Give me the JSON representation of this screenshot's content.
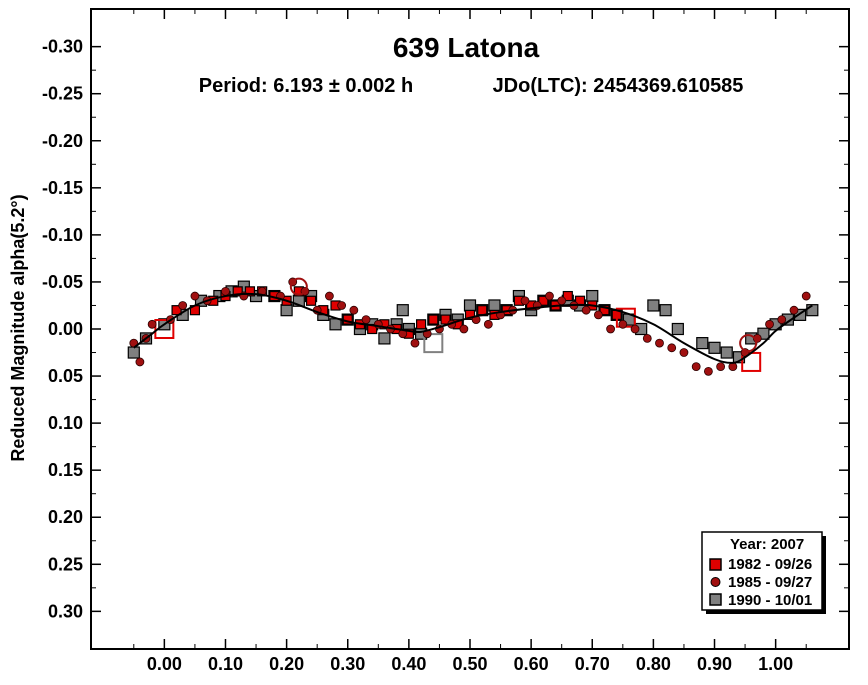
{
  "chart_data": {
    "type": "scatter",
    "title": "639 Latona",
    "subtitle_period": "Period: 6.193 ± 0.002 h",
    "subtitle_epoch": "JDo(LTC): 2454369.610585",
    "ylabel": "Reduced Magnitude alpha(5.2°)",
    "xlabel": "",
    "xlim": [
      -0.12,
      1.12
    ],
    "ylim": [
      0.34,
      -0.34
    ],
    "y_inverted": true,
    "grid": false,
    "legend_position": "bottom-right",
    "legend_title": "Year: 2007",
    "x_ticks": [
      {
        "value": 0.0,
        "label": "0.00"
      },
      {
        "value": 0.1,
        "label": "0.10"
      },
      {
        "value": 0.2,
        "label": "0.20"
      },
      {
        "value": 0.3,
        "label": "0.30"
      },
      {
        "value": 0.4,
        "label": "0.40"
      },
      {
        "value": 0.5,
        "label": "0.50"
      },
      {
        "value": 0.6,
        "label": "0.60"
      },
      {
        "value": 0.7,
        "label": "0.70"
      },
      {
        "value": 0.8,
        "label": "0.80"
      },
      {
        "value": 0.9,
        "label": "0.90"
      },
      {
        "value": 1.0,
        "label": "1.00"
      }
    ],
    "y_ticks": [
      {
        "value": -0.3,
        "label": "-0.30"
      },
      {
        "value": -0.25,
        "label": "-0.25"
      },
      {
        "value": -0.2,
        "label": "-0.20"
      },
      {
        "value": -0.15,
        "label": "-0.15"
      },
      {
        "value": -0.1,
        "label": "-0.10"
      },
      {
        "value": -0.05,
        "label": "-0.05"
      },
      {
        "value": 0.0,
        "label": "0.00"
      },
      {
        "value": 0.05,
        "label": "0.05"
      },
      {
        "value": 0.1,
        "label": "0.10"
      },
      {
        "value": 0.15,
        "label": "0.15"
      },
      {
        "value": 0.2,
        "label": "0.20"
      },
      {
        "value": 0.25,
        "label": "0.25"
      },
      {
        "value": 0.3,
        "label": "0.30"
      }
    ],
    "series": [
      {
        "name": "1982 - 09/26",
        "marker": "square",
        "color": "#e00000",
        "points": [
          [
            0.02,
            -0.02
          ],
          [
            0.05,
            -0.02
          ],
          [
            0.08,
            -0.03
          ],
          [
            0.1,
            -0.035
          ],
          [
            0.12,
            -0.04
          ],
          [
            0.14,
            -0.04
          ],
          [
            0.16,
            -0.04
          ],
          [
            0.18,
            -0.035
          ],
          [
            0.2,
            -0.03
          ],
          [
            0.22,
            -0.04
          ],
          [
            0.24,
            -0.03
          ],
          [
            0.26,
            -0.02
          ],
          [
            0.28,
            -0.025
          ],
          [
            0.3,
            -0.01
          ],
          [
            0.32,
            -0.005
          ],
          [
            0.34,
            0.0
          ],
          [
            0.36,
            -0.005
          ],
          [
            0.38,
            0.0
          ],
          [
            0.4,
            0.005
          ],
          [
            0.42,
            -0.005
          ],
          [
            0.44,
            -0.01
          ],
          [
            0.46,
            -0.01
          ],
          [
            0.48,
            -0.005
          ],
          [
            0.5,
            -0.015
          ],
          [
            0.52,
            -0.02
          ],
          [
            0.54,
            -0.015
          ],
          [
            0.56,
            -0.02
          ],
          [
            0.58,
            -0.03
          ],
          [
            0.6,
            -0.025
          ],
          [
            0.62,
            -0.03
          ],
          [
            0.64,
            -0.025
          ],
          [
            0.66,
            -0.035
          ],
          [
            0.68,
            -0.03
          ],
          [
            0.7,
            -0.025
          ],
          [
            0.72,
            -0.02
          ],
          [
            0.74,
            -0.015
          ]
        ],
        "open_points": [
          [
            0.0,
            0.0
          ],
          [
            0.755,
            -0.012
          ],
          [
            0.96,
            0.035
          ]
        ]
      },
      {
        "name": "1985 - 09/27",
        "marker": "circle",
        "color": "#a01010",
        "points": [
          [
            -0.05,
            0.015
          ],
          [
            -0.04,
            0.035
          ],
          [
            -0.03,
            0.01
          ],
          [
            -0.02,
            -0.005
          ],
          [
            0.01,
            -0.01
          ],
          [
            0.03,
            -0.025
          ],
          [
            0.05,
            -0.035
          ],
          [
            0.07,
            -0.03
          ],
          [
            0.1,
            -0.04
          ],
          [
            0.13,
            -0.035
          ],
          [
            0.16,
            -0.04
          ],
          [
            0.19,
            -0.035
          ],
          [
            0.21,
            -0.05
          ],
          [
            0.23,
            -0.04
          ],
          [
            0.25,
            -0.02
          ],
          [
            0.27,
            -0.035
          ],
          [
            0.29,
            -0.025
          ],
          [
            0.31,
            -0.02
          ],
          [
            0.33,
            -0.01
          ],
          [
            0.35,
            -0.005
          ],
          [
            0.37,
            0.0
          ],
          [
            0.39,
            0.005
          ],
          [
            0.41,
            0.015
          ],
          [
            0.43,
            0.005
          ],
          [
            0.45,
            0.0
          ],
          [
            0.47,
            -0.005
          ],
          [
            0.49,
            0.0
          ],
          [
            0.51,
            -0.01
          ],
          [
            0.53,
            -0.005
          ],
          [
            0.55,
            -0.015
          ],
          [
            0.57,
            -0.02
          ],
          [
            0.59,
            -0.03
          ],
          [
            0.61,
            -0.025
          ],
          [
            0.63,
            -0.035
          ],
          [
            0.65,
            -0.03
          ],
          [
            0.67,
            -0.025
          ],
          [
            0.69,
            -0.02
          ],
          [
            0.71,
            -0.015
          ],
          [
            0.73,
            0.0
          ],
          [
            0.75,
            -0.005
          ],
          [
            0.77,
            0.0
          ],
          [
            0.79,
            0.01
          ],
          [
            0.81,
            0.015
          ],
          [
            0.83,
            0.02
          ],
          [
            0.85,
            0.025
          ],
          [
            0.87,
            0.04
          ],
          [
            0.89,
            0.045
          ],
          [
            0.91,
            0.04
          ],
          [
            0.93,
            0.04
          ],
          [
            0.95,
            0.025
          ],
          [
            0.97,
            0.01
          ],
          [
            0.99,
            -0.005
          ],
          [
            1.01,
            -0.01
          ],
          [
            1.03,
            -0.02
          ],
          [
            1.05,
            -0.035
          ]
        ],
        "open_points": [
          [
            0.22,
            -0.045
          ],
          [
            0.955,
            0.015
          ]
        ]
      },
      {
        "name": "1990 - 10/01",
        "marker": "square",
        "color": "#808080",
        "points": [
          [
            -0.05,
            0.025
          ],
          [
            -0.03,
            0.01
          ],
          [
            0.0,
            -0.005
          ],
          [
            0.03,
            -0.015
          ],
          [
            0.06,
            -0.03
          ],
          [
            0.09,
            -0.035
          ],
          [
            0.11,
            -0.04
          ],
          [
            0.13,
            -0.045
          ],
          [
            0.15,
            -0.035
          ],
          [
            0.18,
            -0.035
          ],
          [
            0.2,
            -0.02
          ],
          [
            0.22,
            -0.03
          ],
          [
            0.24,
            -0.035
          ],
          [
            0.26,
            -0.015
          ],
          [
            0.28,
            -0.005
          ],
          [
            0.3,
            -0.01
          ],
          [
            0.32,
            0.0
          ],
          [
            0.34,
            -0.005
          ],
          [
            0.36,
            0.01
          ],
          [
            0.38,
            -0.005
          ],
          [
            0.39,
            -0.02
          ],
          [
            0.4,
            0.0
          ],
          [
            0.42,
            0.005
          ],
          [
            0.44,
            -0.01
          ],
          [
            0.46,
            -0.015
          ],
          [
            0.48,
            -0.01
          ],
          [
            0.5,
            -0.025
          ],
          [
            0.52,
            -0.02
          ],
          [
            0.54,
            -0.025
          ],
          [
            0.56,
            -0.02
          ],
          [
            0.58,
            -0.035
          ],
          [
            0.6,
            -0.02
          ],
          [
            0.62,
            -0.03
          ],
          [
            0.64,
            -0.025
          ],
          [
            0.66,
            -0.03
          ],
          [
            0.68,
            -0.025
          ],
          [
            0.7,
            -0.035
          ],
          [
            0.72,
            -0.02
          ],
          [
            0.74,
            -0.015
          ],
          [
            0.76,
            -0.01
          ],
          [
            0.78,
            0.0
          ],
          [
            0.8,
            -0.025
          ],
          [
            0.82,
            -0.02
          ],
          [
            0.84,
            0.0
          ],
          [
            0.88,
            0.015
          ],
          [
            0.9,
            0.02
          ],
          [
            0.92,
            0.025
          ],
          [
            0.94,
            0.03
          ],
          [
            0.96,
            0.01
          ],
          [
            0.98,
            0.005
          ],
          [
            1.0,
            -0.005
          ],
          [
            1.02,
            -0.01
          ],
          [
            1.04,
            -0.015
          ],
          [
            1.06,
            -0.02
          ]
        ],
        "open_points": [
          [
            0.44,
            0.015
          ]
        ]
      }
    ],
    "fit_curve": [
      [
        -0.05,
        0.02
      ],
      [
        -0.02,
        0.005
      ],
      [
        0.0,
        -0.005
      ],
      [
        0.05,
        -0.025
      ],
      [
        0.1,
        -0.035
      ],
      [
        0.15,
        -0.037
      ],
      [
        0.2,
        -0.03
      ],
      [
        0.25,
        -0.018
      ],
      [
        0.3,
        -0.008
      ],
      [
        0.35,
        -0.003
      ],
      [
        0.4,
        0.002
      ],
      [
        0.42,
        0.003
      ],
      [
        0.45,
        -0.002
      ],
      [
        0.5,
        -0.012
      ],
      [
        0.55,
        -0.018
      ],
      [
        0.6,
        -0.022
      ],
      [
        0.65,
        -0.025
      ],
      [
        0.7,
        -0.025
      ],
      [
        0.75,
        -0.018
      ],
      [
        0.8,
        -0.005
      ],
      [
        0.85,
        0.015
      ],
      [
        0.9,
        0.032
      ],
      [
        0.93,
        0.036
      ],
      [
        0.95,
        0.03
      ],
      [
        0.98,
        0.015
      ],
      [
        1.0,
        0.002
      ],
      [
        1.03,
        -0.012
      ],
      [
        1.06,
        -0.025
      ]
    ]
  }
}
